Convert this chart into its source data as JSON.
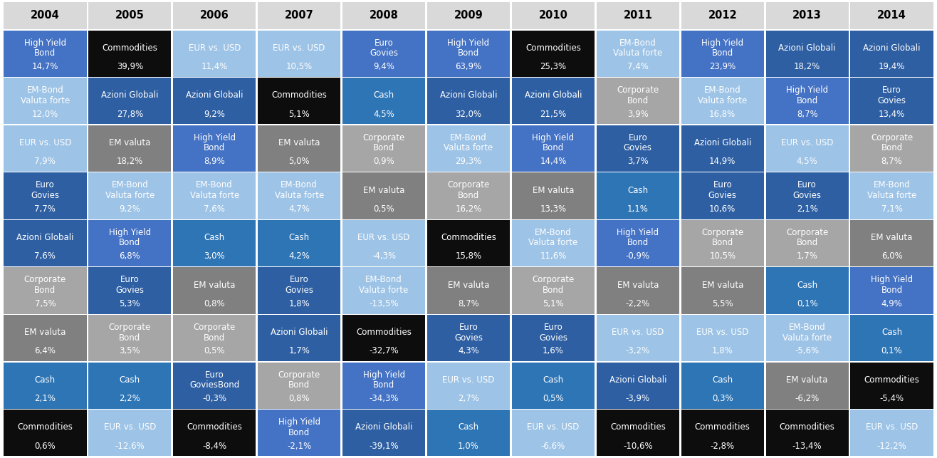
{
  "years": [
    "2004",
    "2005",
    "2006",
    "2007",
    "2008",
    "2009",
    "2010",
    "2011",
    "2012",
    "2013",
    "2014"
  ],
  "table": [
    [
      {
        "label": "High Yield\nBond",
        "value": "14,7%",
        "color": "#4472c4"
      },
      {
        "label": "Commodities",
        "value": "39,9%",
        "color": "#0d0d0d"
      },
      {
        "label": "EUR vs. USD",
        "value": "11,4%",
        "color": "#9dc3e6"
      },
      {
        "label": "EUR vs. USD",
        "value": "10,5%",
        "color": "#9dc3e6"
      },
      {
        "label": "Euro\nGovies",
        "value": "9,4%",
        "color": "#4472c4"
      },
      {
        "label": "High Yield\nBond",
        "value": "63,9%",
        "color": "#4472c4"
      },
      {
        "label": "Commodities",
        "value": "25,3%",
        "color": "#0d0d0d"
      },
      {
        "label": "EM-Bond\nValuta forte",
        "value": "7,4%",
        "color": "#9dc3e6"
      },
      {
        "label": "High Yield\nBond",
        "value": "23,9%",
        "color": "#4472c4"
      },
      {
        "label": "Azioni Globali",
        "value": "18,2%",
        "color": "#2e5fa3"
      },
      {
        "label": "Azioni Globali",
        "value": "19,4%",
        "color": "#2e5fa3"
      }
    ],
    [
      {
        "label": "EM-Bond\nValuta forte",
        "value": "12,0%",
        "color": "#9dc3e6"
      },
      {
        "label": "Azioni Globali",
        "value": "27,8%",
        "color": "#2e5fa3"
      },
      {
        "label": "Azioni Globali",
        "value": "9,2%",
        "color": "#2e5fa3"
      },
      {
        "label": "Commodities",
        "value": "5,1%",
        "color": "#0d0d0d"
      },
      {
        "label": "Cash",
        "value": "4,5%",
        "color": "#2e75b6"
      },
      {
        "label": "Azioni Globali",
        "value": "32,0%",
        "color": "#2e5fa3"
      },
      {
        "label": "Azioni Globali",
        "value": "21,5%",
        "color": "#2e5fa3"
      },
      {
        "label": "Corporate\nBond",
        "value": "3,9%",
        "color": "#a6a6a6"
      },
      {
        "label": "EM-Bond\nValuta forte",
        "value": "16,8%",
        "color": "#9dc3e6"
      },
      {
        "label": "High Yield\nBond",
        "value": "8,7%",
        "color": "#4472c4"
      },
      {
        "label": "Euro\nGovies",
        "value": "13,4%",
        "color": "#2e5fa3"
      }
    ],
    [
      {
        "label": "EUR vs. USD",
        "value": "7,9%",
        "color": "#9dc3e6"
      },
      {
        "label": "EM valuta",
        "value": "18,2%",
        "color": "#808080"
      },
      {
        "label": "High Yield\nBond",
        "value": "8,9%",
        "color": "#4472c4"
      },
      {
        "label": "EM valuta",
        "value": "5,0%",
        "color": "#808080"
      },
      {
        "label": "Corporate\nBond",
        "value": "0,9%",
        "color": "#a6a6a6"
      },
      {
        "label": "EM-Bond\nValuta forte",
        "value": "29,3%",
        "color": "#9dc3e6"
      },
      {
        "label": "High Yield\nBond",
        "value": "14,4%",
        "color": "#4472c4"
      },
      {
        "label": "Euro\nGovies",
        "value": "3,7%",
        "color": "#2e5fa3"
      },
      {
        "label": "Azioni Globali",
        "value": "14,9%",
        "color": "#2e5fa3"
      },
      {
        "label": "EUR vs. USD",
        "value": "4,5%",
        "color": "#9dc3e6"
      },
      {
        "label": "Corporate\nBond",
        "value": "8,7%",
        "color": "#a6a6a6"
      }
    ],
    [
      {
        "label": "Euro\nGovies",
        "value": "7,7%",
        "color": "#2e5fa3"
      },
      {
        "label": "EM-Bond\nValuta forte",
        "value": "9,2%",
        "color": "#9dc3e6"
      },
      {
        "label": "EM-Bond\nValuta forte",
        "value": "7,6%",
        "color": "#9dc3e6"
      },
      {
        "label": "EM-Bond\nValuta forte",
        "value": "4,7%",
        "color": "#9dc3e6"
      },
      {
        "label": "EM valuta",
        "value": "0,5%",
        "color": "#808080"
      },
      {
        "label": "Corporate\nBond",
        "value": "16,2%",
        "color": "#a6a6a6"
      },
      {
        "label": "EM valuta",
        "value": "13,3%",
        "color": "#808080"
      },
      {
        "label": "Cash",
        "value": "1,1%",
        "color": "#2e75b6"
      },
      {
        "label": "Euro\nGovies",
        "value": "10,6%",
        "color": "#2e5fa3"
      },
      {
        "label": "Euro\nGovies",
        "value": "2,1%",
        "color": "#2e5fa3"
      },
      {
        "label": "EM-Bond\nValuta forte",
        "value": "7,1%",
        "color": "#9dc3e6"
      }
    ],
    [
      {
        "label": "Azioni Globali",
        "value": "7,6%",
        "color": "#2e5fa3"
      },
      {
        "label": "High Yield\nBond",
        "value": "6,8%",
        "color": "#4472c4"
      },
      {
        "label": "Cash",
        "value": "3,0%",
        "color": "#2e75b6"
      },
      {
        "label": "Cash",
        "value": "4,2%",
        "color": "#2e75b6"
      },
      {
        "label": "EUR vs. USD",
        "value": "-4,3%",
        "color": "#9dc3e6"
      },
      {
        "label": "Commodities",
        "value": "15,8%",
        "color": "#0d0d0d"
      },
      {
        "label": "EM-Bond\nValuta forte",
        "value": "11,6%",
        "color": "#9dc3e6"
      },
      {
        "label": "High Yield\nBond",
        "value": "-0,9%",
        "color": "#4472c4"
      },
      {
        "label": "Corporate\nBond",
        "value": "10,5%",
        "color": "#a6a6a6"
      },
      {
        "label": "Corporate\nBond",
        "value": "1,7%",
        "color": "#a6a6a6"
      },
      {
        "label": "EM valuta",
        "value": "6,0%",
        "color": "#808080"
      }
    ],
    [
      {
        "label": "Corporate\nBond",
        "value": "7,5%",
        "color": "#a6a6a6"
      },
      {
        "label": "Euro\nGovies",
        "value": "5,3%",
        "color": "#2e5fa3"
      },
      {
        "label": "EM valuta",
        "value": "0,8%",
        "color": "#808080"
      },
      {
        "label": "Euro\nGovies",
        "value": "1,8%",
        "color": "#2e5fa3"
      },
      {
        "label": "EM-Bond\nValuta forte",
        "value": "-13,5%",
        "color": "#9dc3e6"
      },
      {
        "label": "EM valuta",
        "value": "8,7%",
        "color": "#808080"
      },
      {
        "label": "Corporate\nBond",
        "value": "5,1%",
        "color": "#a6a6a6"
      },
      {
        "label": "EM valuta",
        "value": "-2,2%",
        "color": "#808080"
      },
      {
        "label": "EM valuta",
        "value": "5,5%",
        "color": "#808080"
      },
      {
        "label": "Cash",
        "value": "0,1%",
        "color": "#2e75b6"
      },
      {
        "label": "High Yield\nBond",
        "value": "4,9%",
        "color": "#4472c4"
      }
    ],
    [
      {
        "label": "EM valuta",
        "value": "6,4%",
        "color": "#808080"
      },
      {
        "label": "Corporate\nBond",
        "value": "3,5%",
        "color": "#a6a6a6"
      },
      {
        "label": "Corporate\nBond",
        "value": "0,5%",
        "color": "#a6a6a6"
      },
      {
        "label": "Azioni Globali",
        "value": "1,7%",
        "color": "#2e5fa3"
      },
      {
        "label": "Commodities",
        "value": "-32,7%",
        "color": "#0d0d0d"
      },
      {
        "label": "Euro\nGovies",
        "value": "4,3%",
        "color": "#2e5fa3"
      },
      {
        "label": "Euro\nGovies",
        "value": "1,6%",
        "color": "#2e5fa3"
      },
      {
        "label": "EUR vs. USD",
        "value": "-3,2%",
        "color": "#9dc3e6"
      },
      {
        "label": "EUR vs. USD",
        "value": "1,8%",
        "color": "#9dc3e6"
      },
      {
        "label": "EM-Bond\nValuta forte",
        "value": "-5,6%",
        "color": "#9dc3e6"
      },
      {
        "label": "Cash",
        "value": "0,1%",
        "color": "#2e75b6"
      }
    ],
    [
      {
        "label": "Cash",
        "value": "2,1%",
        "color": "#2e75b6"
      },
      {
        "label": "Cash",
        "value": "2,2%",
        "color": "#2e75b6"
      },
      {
        "label": "Euro\nGoviesBond",
        "value": "-0,3%",
        "color": "#2e5fa3"
      },
      {
        "label": "Corporate\nBond",
        "value": "0,8%",
        "color": "#a6a6a6"
      },
      {
        "label": "High Yield\nBond",
        "value": "-34,3%",
        "color": "#4472c4"
      },
      {
        "label": "EUR vs. USD",
        "value": "2,7%",
        "color": "#9dc3e6"
      },
      {
        "label": "Cash",
        "value": "0,5%",
        "color": "#2e75b6"
      },
      {
        "label": "Azioni Globali",
        "value": "-3,9%",
        "color": "#2e5fa3"
      },
      {
        "label": "Cash",
        "value": "0,3%",
        "color": "#2e75b6"
      },
      {
        "label": "EM valuta",
        "value": "-6,2%",
        "color": "#808080"
      },
      {
        "label": "Commodities",
        "value": "-5,4%",
        "color": "#0d0d0d"
      }
    ],
    [
      {
        "label": "Commodities",
        "value": "0,6%",
        "color": "#0d0d0d"
      },
      {
        "label": "EUR vs. USD",
        "value": "-12,6%",
        "color": "#9dc3e6"
      },
      {
        "label": "Commodities",
        "value": "-8,4%",
        "color": "#0d0d0d"
      },
      {
        "label": "High Yield\nBond",
        "value": "-2,1%",
        "color": "#4472c4"
      },
      {
        "label": "Azioni Globali",
        "value": "-39,1%",
        "color": "#2e5fa3"
      },
      {
        "label": "Cash",
        "value": "1,0%",
        "color": "#2e75b6"
      },
      {
        "label": "EUR vs. USD",
        "value": "-6,6%",
        "color": "#9dc3e6"
      },
      {
        "label": "Commodities",
        "value": "-10,6%",
        "color": "#0d0d0d"
      },
      {
        "label": "Commodities",
        "value": "-2,8%",
        "color": "#0d0d0d"
      },
      {
        "label": "Commodities",
        "value": "-13,4%",
        "color": "#0d0d0d"
      },
      {
        "label": "EUR vs. USD",
        "value": "-12,2%",
        "color": "#9dc3e6"
      }
    ]
  ],
  "header_bg": "#d9d9d9",
  "header_text": "#000000",
  "border_color": "#ffffff",
  "label_fontsize": 8.5,
  "value_fontsize": 8.5,
  "header_fontsize": 10.5,
  "fig_width": 13.16,
  "fig_height": 6.43,
  "dpi": 100
}
